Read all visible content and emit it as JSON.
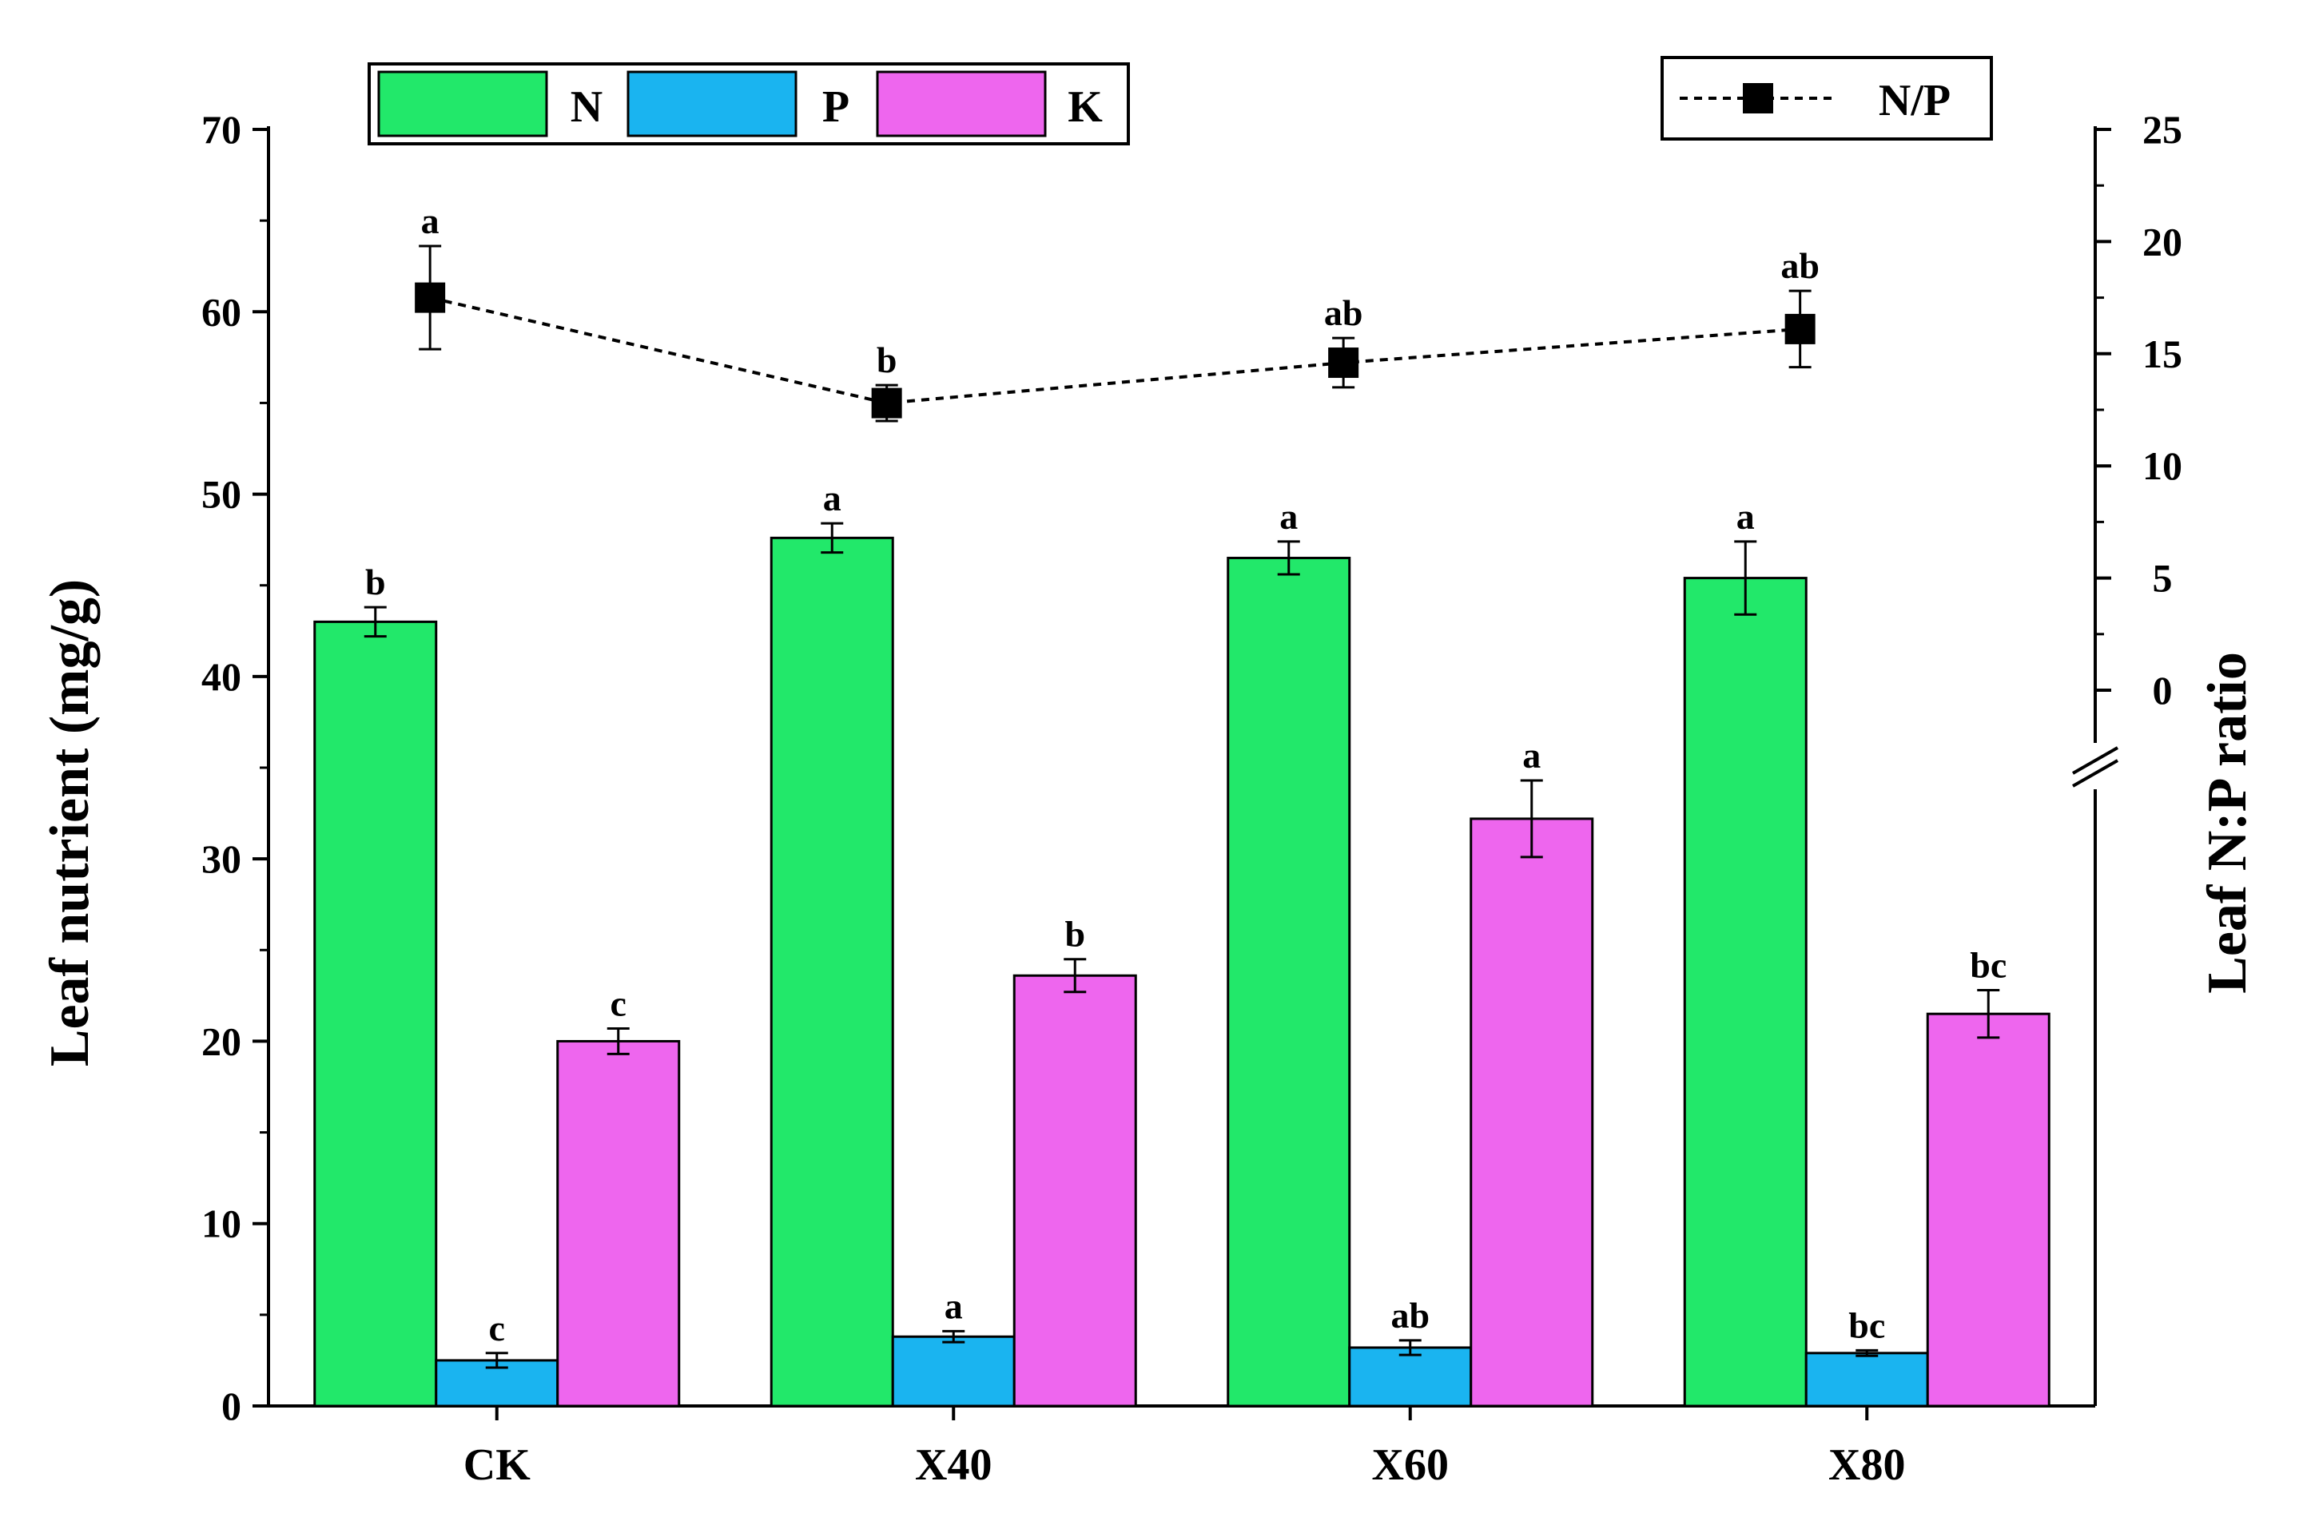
{
  "chart_data": {
    "type": "bar",
    "categories": [
      "CK",
      "X40",
      "X60",
      "X80"
    ],
    "series": [
      {
        "name": "N",
        "color": "#22e86a",
        "values": [
          43.0,
          47.6,
          46.5,
          45.4
        ],
        "errors": [
          0.8,
          0.8,
          0.9,
          2.0
        ],
        "sig": [
          "b",
          "a",
          "a",
          "a"
        ]
      },
      {
        "name": "P",
        "color": "#1ab4f0",
        "values": [
          2.5,
          3.8,
          3.2,
          2.9
        ],
        "errors": [
          0.4,
          0.3,
          0.4,
          0.15
        ],
        "sig": [
          "c",
          "a",
          "ab",
          "bc"
        ]
      },
      {
        "name": "K",
        "color": "#ee66ee",
        "values": [
          20.0,
          23.6,
          32.2,
          21.5
        ],
        "errors": [
          0.7,
          0.9,
          2.1,
          1.3
        ],
        "sig": [
          "c",
          "b",
          "a",
          "bc"
        ]
      }
    ],
    "line_series": {
      "name": "N/P",
      "color": "#000000",
      "values": [
        17.5,
        12.8,
        14.6,
        16.1
      ],
      "errors": [
        2.3,
        0.8,
        1.1,
        1.7
      ],
      "sig": [
        "a",
        "b",
        "ab",
        "ab"
      ]
    },
    "ylabel": "Leaf nutrient (mg/g)",
    "y2label": "Leaf N:P ratio",
    "ylim": [
      0,
      70
    ],
    "yticks": [
      0,
      10,
      20,
      30,
      40,
      50,
      60,
      70
    ],
    "y2lim_visible": [
      0,
      25
    ],
    "y2ticks": [
      0,
      5,
      10,
      15,
      20,
      25
    ],
    "y2_axis_break": true,
    "legend_bars_placement": "top-left",
    "legend_line_placement": "top-right",
    "grid": false
  }
}
